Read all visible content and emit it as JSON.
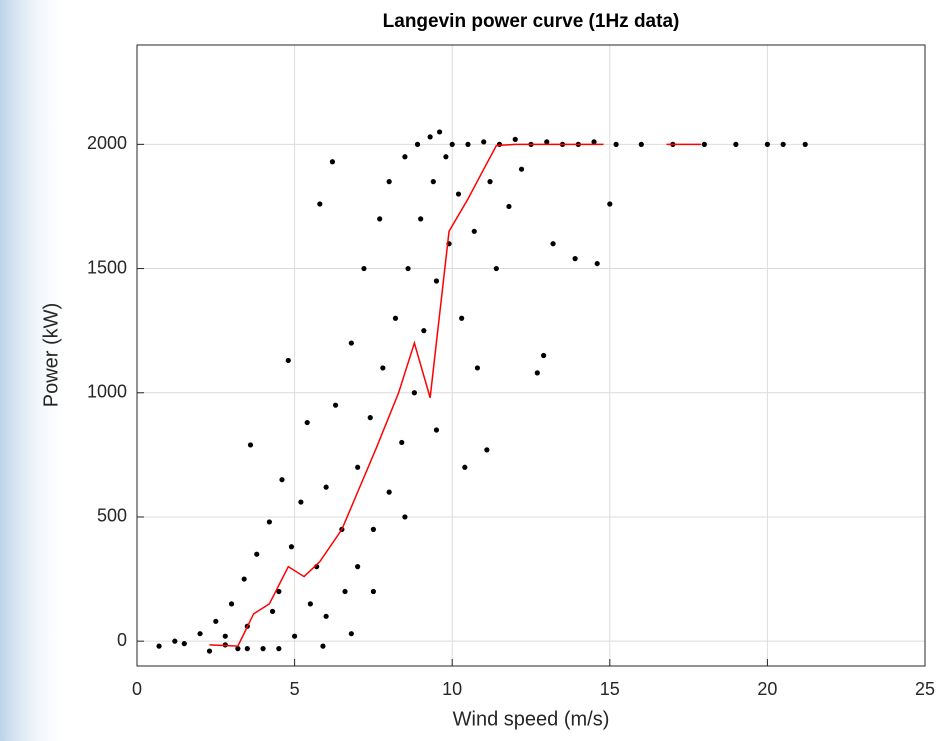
{
  "chart_data": {
    "type": "scatter",
    "title": "Langevin power curve (1Hz data)",
    "x_label": "Wind speed (m/s)",
    "y_label": "Power (kW)",
    "xlim": [
      0,
      25
    ],
    "xticks": [
      0,
      5,
      10,
      15,
      20,
      25
    ],
    "ylim": [
      -100,
      2400
    ],
    "yticks": [
      0,
      500,
      1000,
      1500,
      2000
    ],
    "grid": true,
    "series": [
      {
        "color": "#000000",
        "style": "points",
        "x": [
          1.2,
          0.7,
          1.5,
          2.0,
          2.3,
          2.5,
          2.8,
          3.0,
          3.2,
          3.4,
          3.5,
          3.6,
          3.8,
          4.0,
          4.2,
          4.3,
          4.5,
          4.6,
          4.8,
          4.9,
          5.0,
          5.2,
          5.4,
          5.5,
          5.7,
          5.8,
          6.0,
          6.0,
          6.2,
          6.3,
          6.5,
          6.6,
          6.8,
          7.0,
          7.0,
          7.2,
          7.4,
          7.5,
          7.7,
          7.8,
          8.0,
          8.0,
          8.2,
          8.4,
          8.5,
          8.6,
          8.8,
          8.9,
          9.0,
          9.1,
          9.3,
          9.4,
          9.5,
          9.6,
          9.8,
          9.9,
          10.0,
          10.2,
          10.3,
          10.5,
          10.7,
          10.8,
          11.0,
          11.2,
          11.4,
          11.5,
          11.8,
          12.0,
          12.2,
          12.5,
          12.7,
          12.9,
          13.0,
          13.2,
          13.5,
          13.9,
          14.0,
          14.6,
          14.5,
          15.0,
          15.2,
          16.0,
          17.0,
          18.0,
          19.0,
          20.0,
          20.5,
          21.2,
          10.4,
          9.5,
          11.1,
          8.5,
          7.5,
          6.8,
          5.9,
          4.5,
          3.5,
          2.8
        ],
        "values": [
          0,
          -20,
          -10,
          30,
          -40,
          80,
          20,
          150,
          -30,
          250,
          60,
          790,
          350,
          -30,
          480,
          120,
          200,
          650,
          1130,
          380,
          20,
          560,
          880,
          150,
          300,
          1760,
          620,
          100,
          1930,
          950,
          450,
          200,
          1200,
          700,
          300,
          1500,
          900,
          450,
          1700,
          1100,
          600,
          1850,
          1300,
          800,
          1950,
          1500,
          1000,
          2000,
          1700,
          1250,
          2030,
          1850,
          1450,
          2050,
          1950,
          1600,
          2000,
          1800,
          1300,
          2000,
          1650,
          1100,
          2010,
          1850,
          1500,
          2000,
          1750,
          2020,
          1900,
          2000,
          1080,
          1150,
          2010,
          1600,
          2000,
          1540,
          2000,
          1520,
          2010,
          1760,
          2000,
          2000,
          2000,
          2000,
          2000,
          2000,
          2000,
          2000,
          700,
          850,
          770,
          500,
          200,
          30,
          -20,
          -30,
          -30,
          -15
        ]
      },
      {
        "color": "#ff0000",
        "style": "line",
        "x": [
          2.3,
          3.2,
          3.7,
          4.2,
          4.8,
          5.3,
          5.8,
          6.5,
          7.0,
          7.6,
          8.3,
          8.8,
          9.3,
          9.9,
          10.5,
          11.0,
          11.4,
          12.0,
          14.8,
          15.5,
          16.8,
          17.9
        ],
        "values": [
          -15,
          -20,
          110,
          150,
          300,
          260,
          320,
          450,
          600,
          780,
          1000,
          1200,
          980,
          1650,
          1780,
          1900,
          1995,
          2000,
          2000,
          null,
          2000,
          2000
        ]
      }
    ]
  }
}
